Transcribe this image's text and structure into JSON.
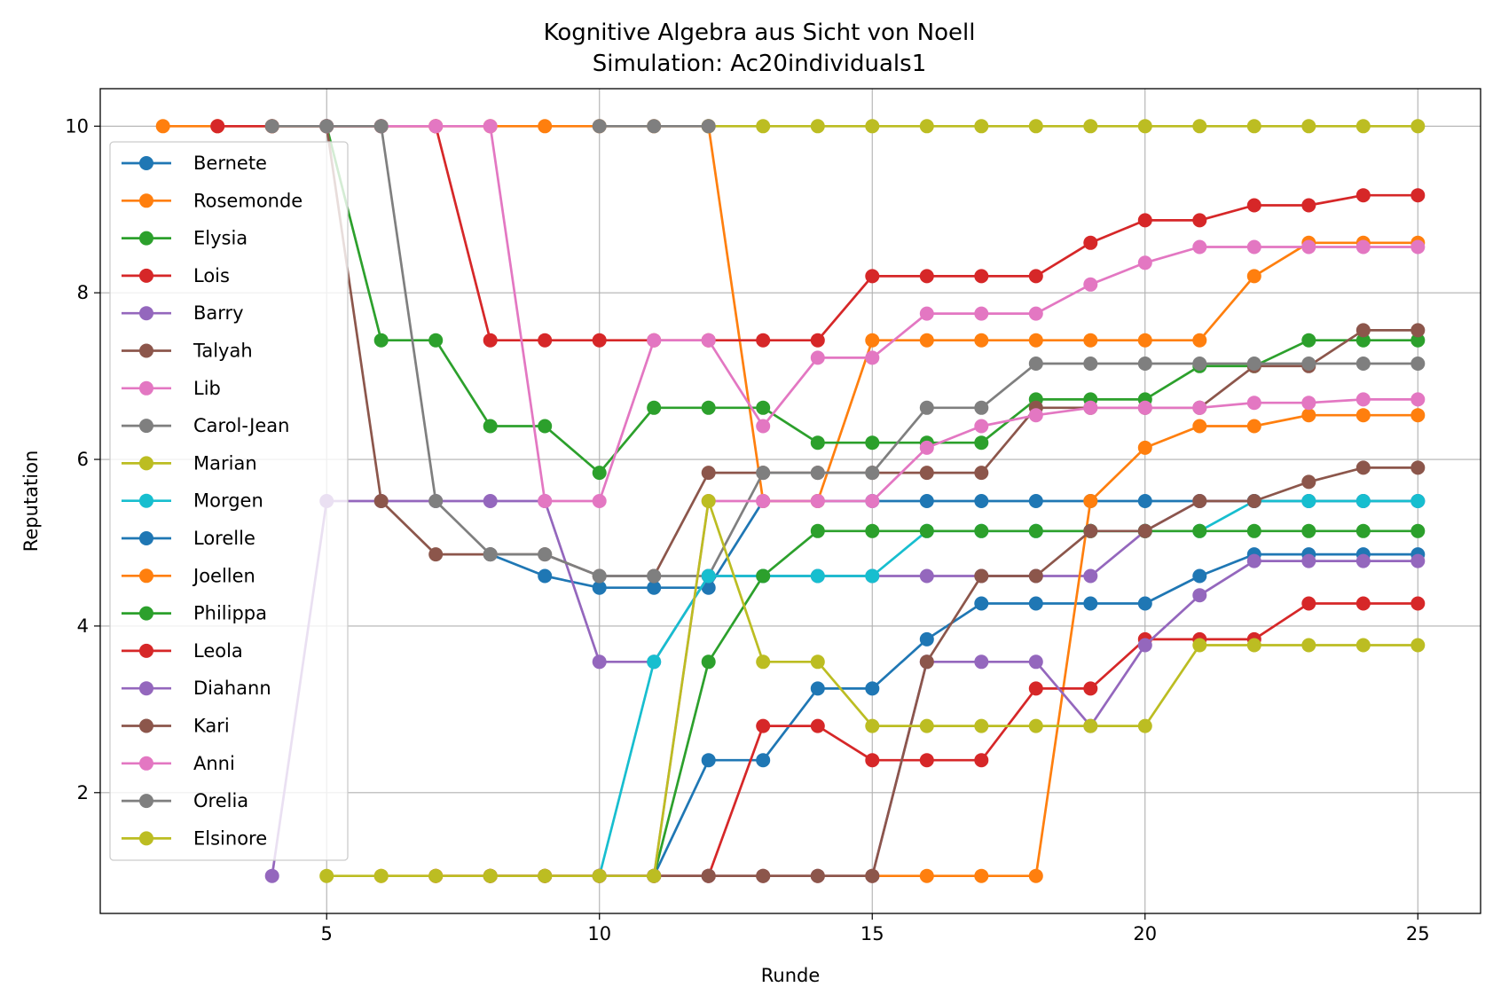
{
  "chart_data": {
    "type": "line",
    "title": "Kognitive Algebra aus Sicht von Noell",
    "subtitle": "Simulation: Ac20individuals1",
    "xlabel": "Runde",
    "ylabel": "Reputation",
    "xlim": [
      0.85,
      26.15
    ],
    "ylim": [
      0.55,
      10.45
    ],
    "xticks": [
      5,
      10,
      15,
      20,
      25
    ],
    "yticks": [
      2,
      4,
      6,
      8,
      10
    ],
    "grid": true,
    "legend_position": "upper-left",
    "series": [
      {
        "name": "Bernete",
        "color": "#1f77b4",
        "x": [
          8,
          9,
          10,
          11,
          12,
          13,
          14,
          15,
          16,
          17,
          18,
          19,
          20,
          21,
          22,
          23,
          24,
          25
        ],
        "y": [
          4.86,
          4.6,
          4.46,
          4.46,
          4.46,
          5.5,
          5.5,
          5.5,
          5.5,
          5.5,
          5.5,
          5.5,
          5.5,
          5.5,
          5.5,
          5.5,
          5.5,
          5.5
        ]
      },
      {
        "name": "Rosemonde",
        "color": "#ff7f0e",
        "x": [
          2,
          3,
          4,
          5,
          6,
          7,
          8,
          9,
          10,
          11,
          12,
          13,
          14,
          15,
          16,
          17,
          18,
          19,
          20,
          21,
          22,
          23,
          24,
          25
        ],
        "y": [
          10,
          10,
          10,
          10,
          10,
          10,
          10,
          10,
          10,
          10,
          10,
          5.5,
          5.5,
          7.43,
          7.43,
          7.43,
          7.43,
          7.43,
          7.43,
          7.43,
          8.2,
          8.6,
          8.6,
          8.6
        ]
      },
      {
        "name": "Elysia",
        "color": "#2ca02c",
        "x": [
          5,
          6,
          7,
          8,
          9,
          10,
          11,
          12,
          13,
          14,
          15,
          16,
          17,
          18,
          19,
          20,
          21,
          22,
          23,
          24,
          25
        ],
        "y": [
          10,
          7.43,
          7.43,
          6.4,
          6.4,
          5.84,
          6.62,
          6.62,
          6.62,
          6.2,
          6.2,
          6.2,
          6.2,
          6.72,
          6.72,
          6.72,
          7.12,
          7.12,
          7.43,
          7.43,
          7.43
        ]
      },
      {
        "name": "Lois",
        "color": "#d62728",
        "x": [
          3,
          4,
          5,
          6,
          7,
          8,
          9,
          10,
          11,
          12,
          13,
          14,
          15,
          16,
          17,
          18,
          19,
          20,
          21,
          22,
          23,
          24,
          25
        ],
        "y": [
          10,
          10,
          10,
          10,
          10,
          7.43,
          7.43,
          7.43,
          7.43,
          7.43,
          7.43,
          7.43,
          8.2,
          8.2,
          8.2,
          8.2,
          8.6,
          8.87,
          8.87,
          9.05,
          9.05,
          9.17,
          9.17
        ]
      },
      {
        "name": "Barry",
        "color": "#9467bd",
        "x": [
          4,
          5,
          6,
          7,
          8,
          9,
          10,
          11,
          12,
          13,
          14,
          15,
          16,
          17,
          18,
          19,
          20,
          21,
          22,
          23,
          24,
          25
        ],
        "y": [
          1,
          5.5,
          5.5,
          5.5,
          5.5,
          5.5,
          3.57,
          3.57,
          4.6,
          4.6,
          4.6,
          4.6,
          4.6,
          4.6,
          4.6,
          4.6,
          5.14,
          5.5,
          5.5,
          5.5,
          5.5,
          5.5
        ]
      },
      {
        "name": "Talyah",
        "color": "#8c564b",
        "x": [
          5,
          6,
          7,
          8,
          9,
          10,
          11,
          12,
          13,
          14,
          15,
          16,
          17,
          18,
          19,
          20,
          21,
          22,
          23,
          24,
          25
        ],
        "y": [
          10,
          5.5,
          4.86,
          4.86,
          4.86,
          4.6,
          4.6,
          5.84,
          5.84,
          5.84,
          5.84,
          5.84,
          5.84,
          6.62,
          6.62,
          6.62,
          6.62,
          7.12,
          7.12,
          7.55,
          7.55
        ]
      },
      {
        "name": "Lib",
        "color": "#e377c2",
        "x": [
          5,
          6,
          7,
          8,
          9,
          10,
          11,
          12,
          13,
          14,
          15,
          16,
          17,
          18,
          19,
          20,
          21,
          22,
          23,
          24,
          25
        ],
        "y": [
          10,
          10,
          10,
          10,
          5.5,
          5.5,
          7.43,
          7.43,
          6.4,
          7.22,
          7.22,
          7.75,
          7.75,
          7.75,
          8.1,
          8.36,
          8.55,
          8.55,
          8.55,
          8.55,
          8.55
        ]
      },
      {
        "name": "Carol-Jean",
        "color": "#7f7f7f",
        "x": [
          4,
          5,
          6,
          7,
          8,
          9,
          10,
          11,
          12,
          13,
          14,
          15,
          16,
          17,
          18,
          19,
          20,
          21,
          22,
          23,
          24,
          25
        ],
        "y": [
          10,
          10,
          10,
          5.5,
          4.86,
          4.86,
          4.6,
          4.6,
          4.6,
          5.84,
          5.84,
          5.84,
          6.62,
          6.62,
          7.15,
          7.15,
          7.15,
          7.15,
          7.15,
          7.15,
          7.15,
          7.15
        ]
      },
      {
        "name": "Marian",
        "color": "#bcbd22",
        "x": [
          12,
          13,
          14,
          15,
          16,
          17,
          18,
          19,
          20,
          21,
          22,
          23,
          24,
          25
        ],
        "y": [
          10,
          10,
          10,
          10,
          10,
          10,
          10,
          10,
          10,
          10,
          10,
          10,
          10,
          10
        ]
      },
      {
        "name": "Morgen",
        "color": "#17becf",
        "x": [
          10,
          11,
          12,
          13,
          14,
          15,
          16,
          17,
          18,
          19,
          20,
          21,
          22,
          23,
          24,
          25
        ],
        "y": [
          1,
          3.57,
          4.6,
          4.6,
          4.6,
          4.6,
          5.14,
          5.14,
          5.14,
          5.14,
          5.14,
          5.14,
          5.5,
          5.5,
          5.5,
          5.5
        ]
      },
      {
        "name": "Lorelle",
        "color": "#1f77b4",
        "x": [
          11,
          12,
          13,
          14,
          15,
          16,
          17,
          18,
          19,
          20,
          21,
          22,
          23,
          24,
          25
        ],
        "y": [
          1,
          2.39,
          2.39,
          3.25,
          3.25,
          3.84,
          4.27,
          4.27,
          4.27,
          4.27,
          4.6,
          4.86,
          4.86,
          4.86,
          4.86
        ]
      },
      {
        "name": "Joellen",
        "color": "#ff7f0e",
        "x": [
          6,
          7,
          8,
          9,
          10,
          11,
          12,
          13,
          14,
          15,
          16,
          17,
          18,
          19,
          20,
          21,
          22,
          23,
          24,
          25
        ],
        "y": [
          1,
          1,
          1,
          1,
          1,
          1,
          1,
          1,
          1,
          1,
          1,
          1,
          1,
          5.5,
          6.14,
          6.4,
          6.4,
          6.53,
          6.53,
          6.53
        ]
      },
      {
        "name": "Philippa",
        "color": "#2ca02c",
        "x": [
          11,
          12,
          13,
          14,
          15,
          16,
          17,
          18,
          19,
          20,
          21,
          22,
          23,
          24,
          25
        ],
        "y": [
          1,
          3.57,
          4.6,
          5.14,
          5.14,
          5.14,
          5.14,
          5.14,
          5.14,
          5.14,
          5.14,
          5.14,
          5.14,
          5.14,
          5.14
        ]
      },
      {
        "name": "Leola",
        "color": "#d62728",
        "x": [
          7,
          8,
          9,
          10,
          11,
          12,
          13,
          14,
          15,
          16,
          17,
          18,
          19,
          20,
          21,
          22,
          23,
          24,
          25
        ],
        "y": [
          1,
          1,
          1,
          1,
          1,
          1,
          2.8,
          2.8,
          2.39,
          2.39,
          2.39,
          3.25,
          3.25,
          3.84,
          3.84,
          3.84,
          4.27,
          4.27,
          4.27
        ]
      },
      {
        "name": "Diahann",
        "color": "#9467bd",
        "x": [
          10,
          11,
          12,
          13,
          14,
          15,
          16,
          17,
          18,
          19,
          20,
          21,
          22,
          23,
          24,
          25
        ],
        "y": [
          1,
          1,
          1,
          1,
          1,
          1,
          3.57,
          3.57,
          3.57,
          2.8,
          3.77,
          4.37,
          4.78,
          4.78,
          4.78,
          4.78
        ]
      },
      {
        "name": "Kari",
        "color": "#8c564b",
        "x": [
          8,
          9,
          10,
          11,
          12,
          13,
          14,
          15,
          16,
          17,
          18,
          19,
          20,
          21,
          22,
          23,
          24,
          25
        ],
        "y": [
          1,
          1,
          1,
          1,
          1,
          1,
          1,
          1,
          3.57,
          4.6,
          4.6,
          5.14,
          5.14,
          5.5,
          5.5,
          5.73,
          5.9,
          5.9
        ]
      },
      {
        "name": "Anni",
        "color": "#e377c2",
        "x": [
          10,
          11,
          12,
          13,
          14,
          15,
          16,
          17,
          18,
          19,
          20,
          21,
          22,
          23,
          24,
          25
        ],
        "y": [
          1,
          1,
          5.5,
          5.5,
          5.5,
          5.5,
          6.14,
          6.4,
          6.53,
          6.62,
          6.62,
          6.62,
          6.68,
          6.68,
          6.72,
          6.72
        ]
      },
      {
        "name": "Orelia",
        "color": "#7f7f7f",
        "x": [
          10,
          11,
          12
        ],
        "y": [
          10,
          10,
          10
        ]
      },
      {
        "name": "Elsinore",
        "color": "#bcbd22",
        "x": [
          5,
          6,
          7,
          8,
          9,
          10,
          11,
          12,
          13,
          14,
          15,
          16,
          17,
          18,
          19,
          20,
          21,
          22,
          23,
          24,
          25
        ],
        "y": [
          1,
          1,
          1,
          1,
          1,
          1,
          1,
          5.5,
          3.57,
          3.57,
          2.8,
          2.8,
          2.8,
          2.8,
          2.8,
          2.8,
          3.77,
          3.77,
          3.77,
          3.77,
          3.77
        ]
      }
    ]
  }
}
